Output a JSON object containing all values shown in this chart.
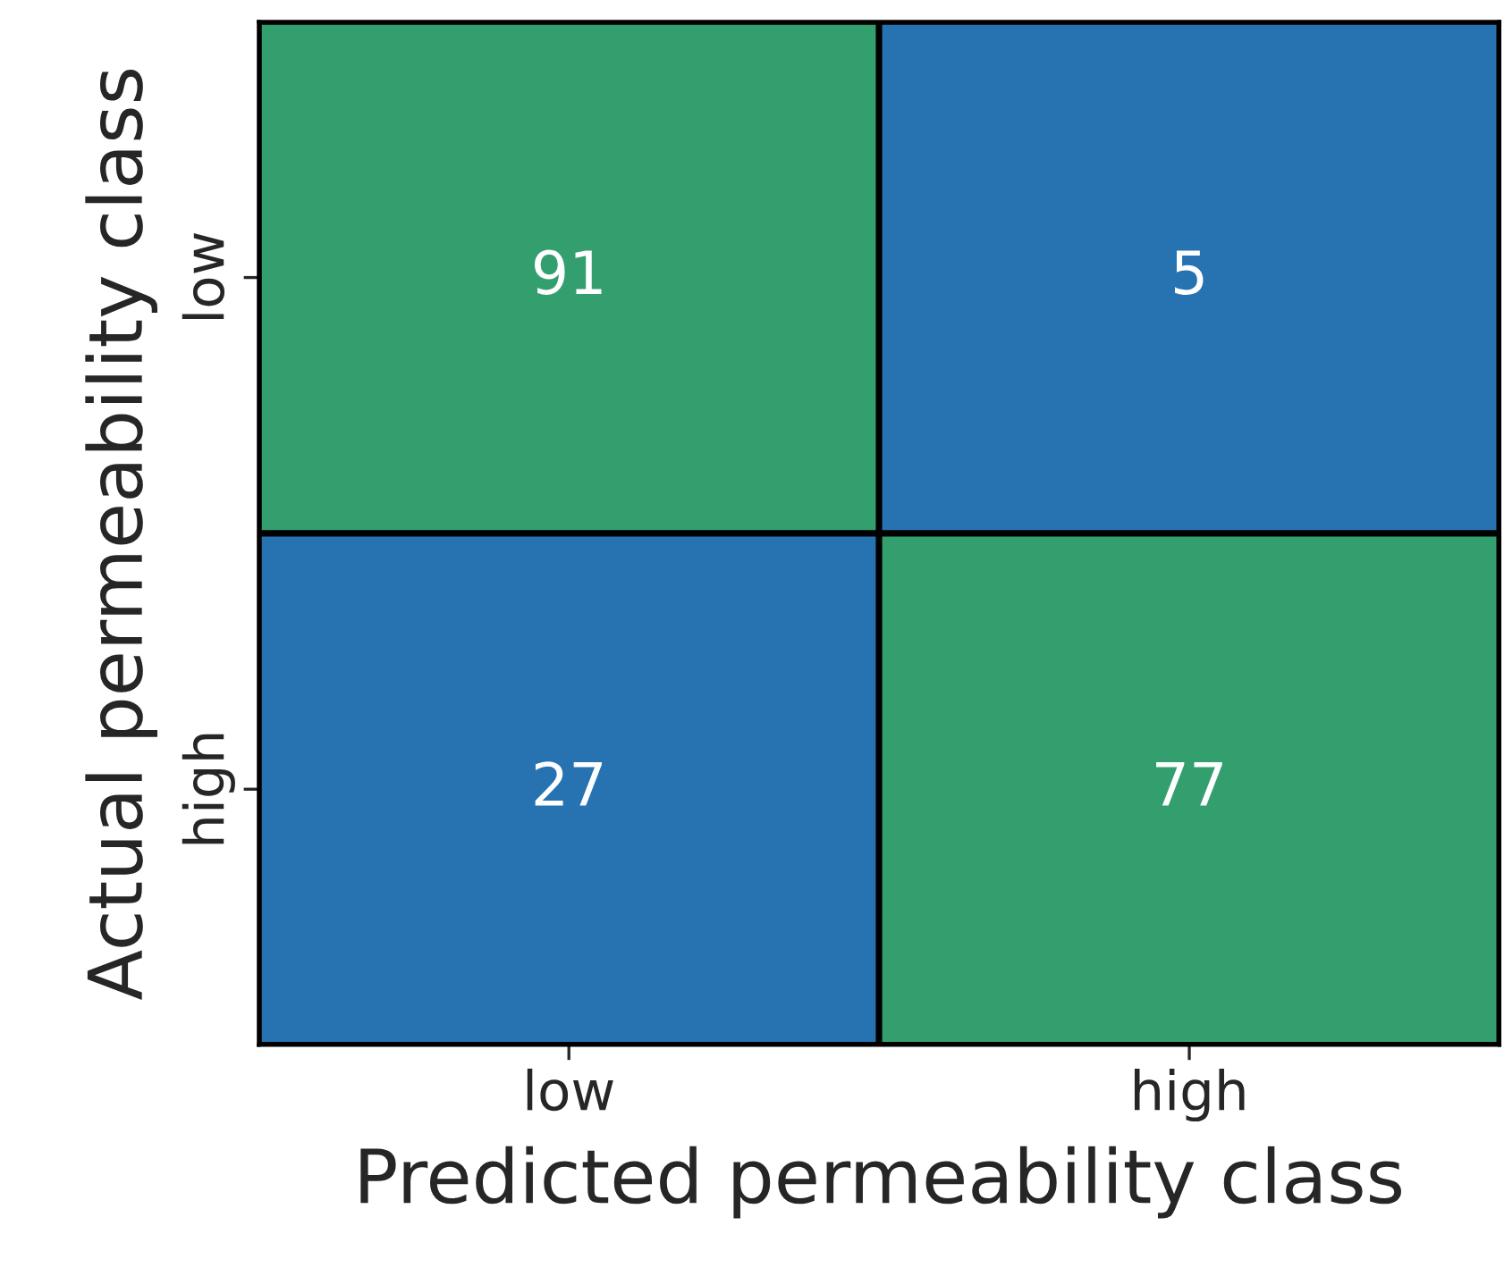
{
  "chart_data": {
    "type": "heatmap",
    "xlabel": "Predicted permeability class",
    "ylabel": "Actual permeability class",
    "categories": [
      "low",
      "high"
    ],
    "y_categories": [
      "low",
      "high"
    ],
    "data_labels": true,
    "cells": [
      [
        91,
        5
      ],
      [
        27,
        77
      ]
    ],
    "colors": [
      [
        "#339f6f",
        "#2773b2"
      ],
      [
        "#2773b2",
        "#339f6f"
      ]
    ]
  }
}
